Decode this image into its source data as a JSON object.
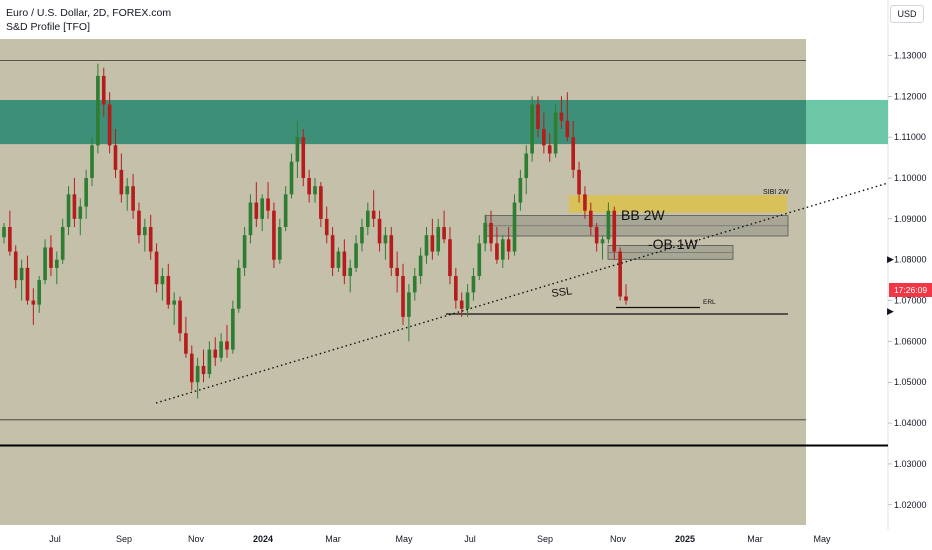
{
  "legend": {
    "symbol": "Euro / U.S. Dollar, 2D, FOREX.com",
    "indicator": "S&D Profile [TFO]"
  },
  "currency_button": "USD",
  "countdown": "17:26:09",
  "colors": {
    "bull_candle": "#2e7d32",
    "bear_candle": "#b71c1c",
    "plot_bg": "#c4c0aa",
    "teal_zone": "#3d8f77",
    "teal_zone_ext": "#6cc7a6",
    "sibi_zone": "#d9c15a",
    "block_zone": "#a8a694",
    "countdown_bg": "#f23645"
  },
  "annotations": {
    "bb": "BB 2W",
    "ob": "-OB 1W",
    "sibi": "SIBI 2W",
    "ssl": "SSL",
    "erl": "ERL"
  },
  "chart_data": {
    "type": "candlestick",
    "title": "Euro / U.S. Dollar, 2D, FOREX.com",
    "y_axis": {
      "ticks": [
        "1.13000",
        "1.12000",
        "1.11000",
        "1.10000",
        "1.09000",
        "1.08000",
        "1.07000",
        "1.06000",
        "1.05000",
        "1.04000",
        "1.03000",
        "1.02000"
      ],
      "range": [
        1.0175,
        1.1355
      ]
    },
    "x_axis": {
      "ticks": [
        "Jul",
        "Sep",
        "Nov",
        "2024",
        "Mar",
        "May",
        "Jul",
        "Sep",
        "Nov",
        "2025",
        "Mar",
        "May"
      ],
      "bold_ticks": [
        "2024",
        "2025"
      ]
    },
    "last_price_countdown": "17:26:09",
    "zones": [
      {
        "name": "supply zone (teal)",
        "from": 1.1083,
        "to": 1.1191
      },
      {
        "name": "SIBI 2W",
        "from": 1.0915,
        "to": 1.0958
      },
      {
        "name": "BB 2W",
        "from": 1.0858,
        "to": 1.0908
      },
      {
        "name": "OB 1W",
        "from": 1.0801,
        "to": 1.0835
      }
    ],
    "levels": [
      {
        "name": "top line",
        "value": 1.1288
      },
      {
        "name": "ERL",
        "value": 1.0683
      },
      {
        "name": "SSL",
        "value": 1.0667
      },
      {
        "name": "lower line",
        "value": 1.0408
      },
      {
        "name": "bold line",
        "value": 1.0345
      }
    ],
    "candles_ohlc": [
      [
        1.0855,
        1.089,
        1.084,
        1.088
      ],
      [
        1.088,
        1.092,
        1.081,
        1.082
      ],
      [
        1.082,
        1.0835,
        1.073,
        1.075
      ],
      [
        1.075,
        1.08,
        1.07,
        1.078
      ],
      [
        1.078,
        1.081,
        1.069,
        1.07
      ],
      [
        1.07,
        1.073,
        1.064,
        1.069
      ],
      [
        1.069,
        1.076,
        1.067,
        1.075
      ],
      [
        1.075,
        1.085,
        1.074,
        1.083
      ],
      [
        1.083,
        1.086,
        1.076,
        1.078
      ],
      [
        1.078,
        1.082,
        1.074,
        1.08
      ],
      [
        1.08,
        1.09,
        1.079,
        1.088
      ],
      [
        1.088,
        1.098,
        1.086,
        1.096
      ],
      [
        1.096,
        1.1,
        1.088,
        1.09
      ],
      [
        1.09,
        1.095,
        1.086,
        1.093
      ],
      [
        1.093,
        1.102,
        1.09,
        1.1
      ],
      [
        1.1,
        1.11,
        1.098,
        1.108
      ],
      [
        1.108,
        1.128,
        1.106,
        1.125
      ],
      [
        1.125,
        1.127,
        1.115,
        1.118
      ],
      [
        1.118,
        1.121,
        1.106,
        1.108
      ],
      [
        1.108,
        1.112,
        1.1,
        1.102
      ],
      [
        1.102,
        1.106,
        1.094,
        1.096
      ],
      [
        1.096,
        1.1,
        1.092,
        1.098
      ],
      [
        1.098,
        1.101,
        1.09,
        1.092
      ],
      [
        1.092,
        1.094,
        1.084,
        1.086
      ],
      [
        1.086,
        1.09,
        1.082,
        1.088
      ],
      [
        1.088,
        1.091,
        1.08,
        1.082
      ],
      [
        1.082,
        1.084,
        1.072,
        1.074
      ],
      [
        1.074,
        1.078,
        1.07,
        1.076
      ],
      [
        1.076,
        1.079,
        1.068,
        1.069
      ],
      [
        1.069,
        1.072,
        1.064,
        1.07
      ],
      [
        1.07,
        1.071,
        1.06,
        1.062
      ],
      [
        1.062,
        1.066,
        1.056,
        1.057
      ],
      [
        1.057,
        1.059,
        1.048,
        1.05
      ],
      [
        1.05,
        1.056,
        1.046,
        1.054
      ],
      [
        1.054,
        1.058,
        1.05,
        1.052
      ],
      [
        1.052,
        1.06,
        1.051,
        1.058
      ],
      [
        1.058,
        1.061,
        1.054,
        1.056
      ],
      [
        1.056,
        1.062,
        1.055,
        1.06
      ],
      [
        1.06,
        1.064,
        1.056,
        1.058
      ],
      [
        1.058,
        1.07,
        1.057,
        1.068
      ],
      [
        1.068,
        1.08,
        1.067,
        1.078
      ],
      [
        1.078,
        1.088,
        1.076,
        1.086
      ],
      [
        1.086,
        1.096,
        1.084,
        1.094
      ],
      [
        1.094,
        1.099,
        1.088,
        1.09
      ],
      [
        1.09,
        1.096,
        1.087,
        1.095
      ],
      [
        1.095,
        1.099,
        1.09,
        1.092
      ],
      [
        1.092,
        1.094,
        1.078,
        1.08
      ],
      [
        1.08,
        1.09,
        1.079,
        1.088
      ],
      [
        1.088,
        1.098,
        1.087,
        1.096
      ],
      [
        1.096,
        1.106,
        1.095,
        1.104
      ],
      [
        1.104,
        1.114,
        1.1,
        1.11
      ],
      [
        1.11,
        1.112,
        1.098,
        1.1
      ],
      [
        1.1,
        1.102,
        1.094,
        1.096
      ],
      [
        1.096,
        1.1,
        1.094,
        1.098
      ],
      [
        1.098,
        1.099,
        1.088,
        1.09
      ],
      [
        1.09,
        1.093,
        1.084,
        1.086
      ],
      [
        1.086,
        1.088,
        1.076,
        1.078
      ],
      [
        1.078,
        1.083,
        1.077,
        1.082
      ],
      [
        1.082,
        1.085,
        1.074,
        1.076
      ],
      [
        1.076,
        1.08,
        1.072,
        1.078
      ],
      [
        1.078,
        1.086,
        1.077,
        1.084
      ],
      [
        1.084,
        1.09,
        1.082,
        1.088
      ],
      [
        1.088,
        1.094,
        1.086,
        1.092
      ],
      [
        1.092,
        1.097,
        1.088,
        1.09
      ],
      [
        1.09,
        1.092,
        1.082,
        1.084
      ],
      [
        1.084,
        1.088,
        1.08,
        1.086
      ],
      [
        1.086,
        1.088,
        1.076,
        1.078
      ],
      [
        1.078,
        1.082,
        1.072,
        1.076
      ],
      [
        1.076,
        1.079,
        1.064,
        1.066
      ],
      [
        1.066,
        1.074,
        1.06,
        1.072
      ],
      [
        1.072,
        1.078,
        1.07,
        1.076
      ],
      [
        1.076,
        1.083,
        1.074,
        1.081
      ],
      [
        1.081,
        1.088,
        1.079,
        1.086
      ],
      [
        1.086,
        1.09,
        1.08,
        1.082
      ],
      [
        1.082,
        1.09,
        1.081,
        1.088
      ],
      [
        1.088,
        1.092,
        1.084,
        1.085
      ],
      [
        1.085,
        1.088,
        1.074,
        1.076
      ],
      [
        1.076,
        1.078,
        1.068,
        1.07
      ],
      [
        1.07,
        1.072,
        1.066,
        1.068
      ],
      [
        1.068,
        1.074,
        1.066,
        1.072
      ],
      [
        1.072,
        1.078,
        1.07,
        1.076
      ],
      [
        1.076,
        1.086,
        1.075,
        1.084
      ],
      [
        1.084,
        1.091,
        1.082,
        1.089
      ],
      [
        1.089,
        1.092,
        1.082,
        1.084
      ],
      [
        1.084,
        1.088,
        1.079,
        1.08
      ],
      [
        1.08,
        1.086,
        1.078,
        1.085
      ],
      [
        1.085,
        1.088,
        1.08,
        1.082
      ],
      [
        1.082,
        1.096,
        1.081,
        1.094
      ],
      [
        1.094,
        1.102,
        1.092,
        1.1
      ],
      [
        1.1,
        1.108,
        1.096,
        1.106
      ],
      [
        1.106,
        1.12,
        1.104,
        1.118
      ],
      [
        1.118,
        1.12,
        1.11,
        1.112
      ],
      [
        1.112,
        1.116,
        1.106,
        1.108
      ],
      [
        1.108,
        1.111,
        1.104,
        1.106
      ],
      [
        1.106,
        1.118,
        1.105,
        1.116
      ],
      [
        1.116,
        1.12,
        1.112,
        1.114
      ],
      [
        1.114,
        1.121,
        1.109,
        1.11
      ],
      [
        1.11,
        1.114,
        1.1,
        1.102
      ],
      [
        1.102,
        1.104,
        1.094,
        1.096
      ],
      [
        1.096,
        1.098,
        1.09,
        1.092
      ],
      [
        1.092,
        1.094,
        1.086,
        1.088
      ],
      [
        1.088,
        1.089,
        1.082,
        1.084
      ],
      [
        1.084,
        1.086,
        1.08,
        1.085
      ],
      [
        1.085,
        1.094,
        1.084,
        1.092
      ],
      [
        1.092,
        1.093,
        1.08,
        1.082
      ],
      [
        1.082,
        1.083,
        1.07,
        1.071
      ],
      [
        1.071,
        1.074,
        1.069,
        1.07
      ]
    ]
  }
}
